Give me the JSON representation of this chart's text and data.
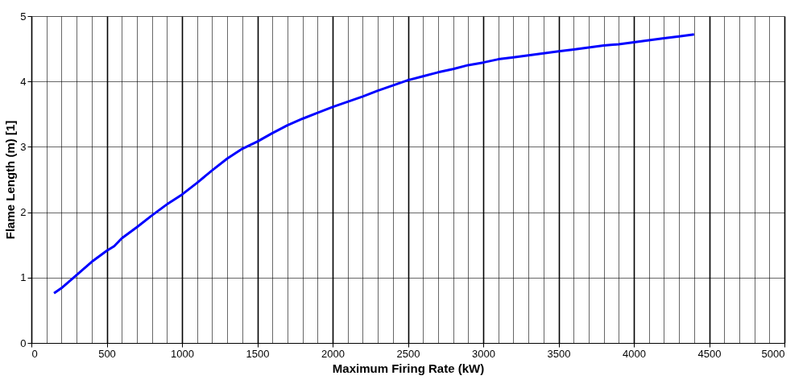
{
  "chart_data": {
    "type": "line",
    "xlabel": "Maximum Firing Rate (kW)",
    "ylabel": "Flame Length (m) [1]",
    "x": [
      150,
      200,
      300,
      400,
      500,
      550,
      600,
      700,
      800,
      900,
      1000,
      1100,
      1200,
      1300,
      1400,
      1500,
      1600,
      1700,
      1800,
      1900,
      2000,
      2100,
      2200,
      2300,
      2400,
      2500,
      2600,
      2700,
      2800,
      2900,
      3000,
      3100,
      3200,
      3300,
      3400,
      3500,
      3600,
      3700,
      3800,
      3900,
      4000,
      4100,
      4200,
      4300,
      4400
    ],
    "series": [
      {
        "color": "#0000ff",
        "values": [
          0.76,
          0.84,
          1.04,
          1.24,
          1.41,
          1.48,
          1.6,
          1.77,
          1.95,
          2.12,
          2.27,
          2.45,
          2.64,
          2.82,
          2.97,
          3.08,
          3.21,
          3.33,
          3.43,
          3.52,
          3.61,
          3.69,
          3.77,
          3.86,
          3.94,
          4.02,
          4.08,
          4.14,
          4.19,
          4.25,
          4.29,
          4.34,
          4.37,
          4.4,
          4.43,
          4.46,
          4.49,
          4.52,
          4.55,
          4.57,
          4.6,
          4.63,
          4.66,
          4.69,
          4.72
        ]
      }
    ],
    "xlim": [
      0,
      5000
    ],
    "xticks": [
      0,
      {
        "value": 100,
        "label": null
      },
      {
        "value": 200,
        "label": null
      },
      {
        "value": 300,
        "label": null
      },
      {
        "value": 400,
        "label": null
      },
      500,
      {
        "value": 600,
        "label": null
      },
      {
        "value": 700,
        "label": null
      },
      {
        "value": 800,
        "label": null
      },
      {
        "value": 900,
        "label": null
      },
      1000,
      {
        "value": 1100,
        "label": null
      },
      {
        "value": 1200,
        "label": null
      },
      {
        "value": 1300,
        "label": null
      },
      {
        "value": 1400,
        "label": null
      },
      1500,
      {
        "value": 1600,
        "label": null
      },
      {
        "value": 1700,
        "label": null
      },
      {
        "value": 1800,
        "label": null
      },
      {
        "value": 1900,
        "label": null
      },
      2000,
      {
        "value": 2100,
        "label": null
      },
      {
        "value": 2200,
        "label": null
      },
      {
        "value": 2300,
        "label": null
      },
      {
        "value": 2400,
        "label": null
      },
      2500,
      {
        "value": 2600,
        "label": null
      },
      {
        "value": 2700,
        "label": null
      },
      {
        "value": 2800,
        "label": null
      },
      {
        "value": 2900,
        "label": null
      },
      3000,
      {
        "value": 3100,
        "label": null
      },
      {
        "value": 3200,
        "label": null
      },
      {
        "value": 3300,
        "label": null
      },
      {
        "value": 3400,
        "label": null
      },
      3500,
      {
        "value": 3600,
        "label": null
      },
      {
        "value": 3700,
        "label": null
      },
      {
        "value": 3800,
        "label": null
      },
      {
        "value": 3900,
        "label": null
      },
      4000,
      {
        "value": 4100,
        "label": null
      },
      {
        "value": 4200,
        "label": null
      },
      {
        "value": 4300,
        "label": null
      },
      {
        "value": 4400,
        "label": null
      },
      4500,
      {
        "value": 4600,
        "label": null
      },
      {
        "value": 4700,
        "label": null
      },
      {
        "value": 4800,
        "label": null
      },
      {
        "value": 4900,
        "label": null
      },
      5000
    ],
    "ylim": [
      0,
      5
    ],
    "yticks": [
      0,
      1,
      2,
      3,
      4,
      5
    ],
    "grid": true,
    "marker": "none",
    "line_style": "solid"
  }
}
